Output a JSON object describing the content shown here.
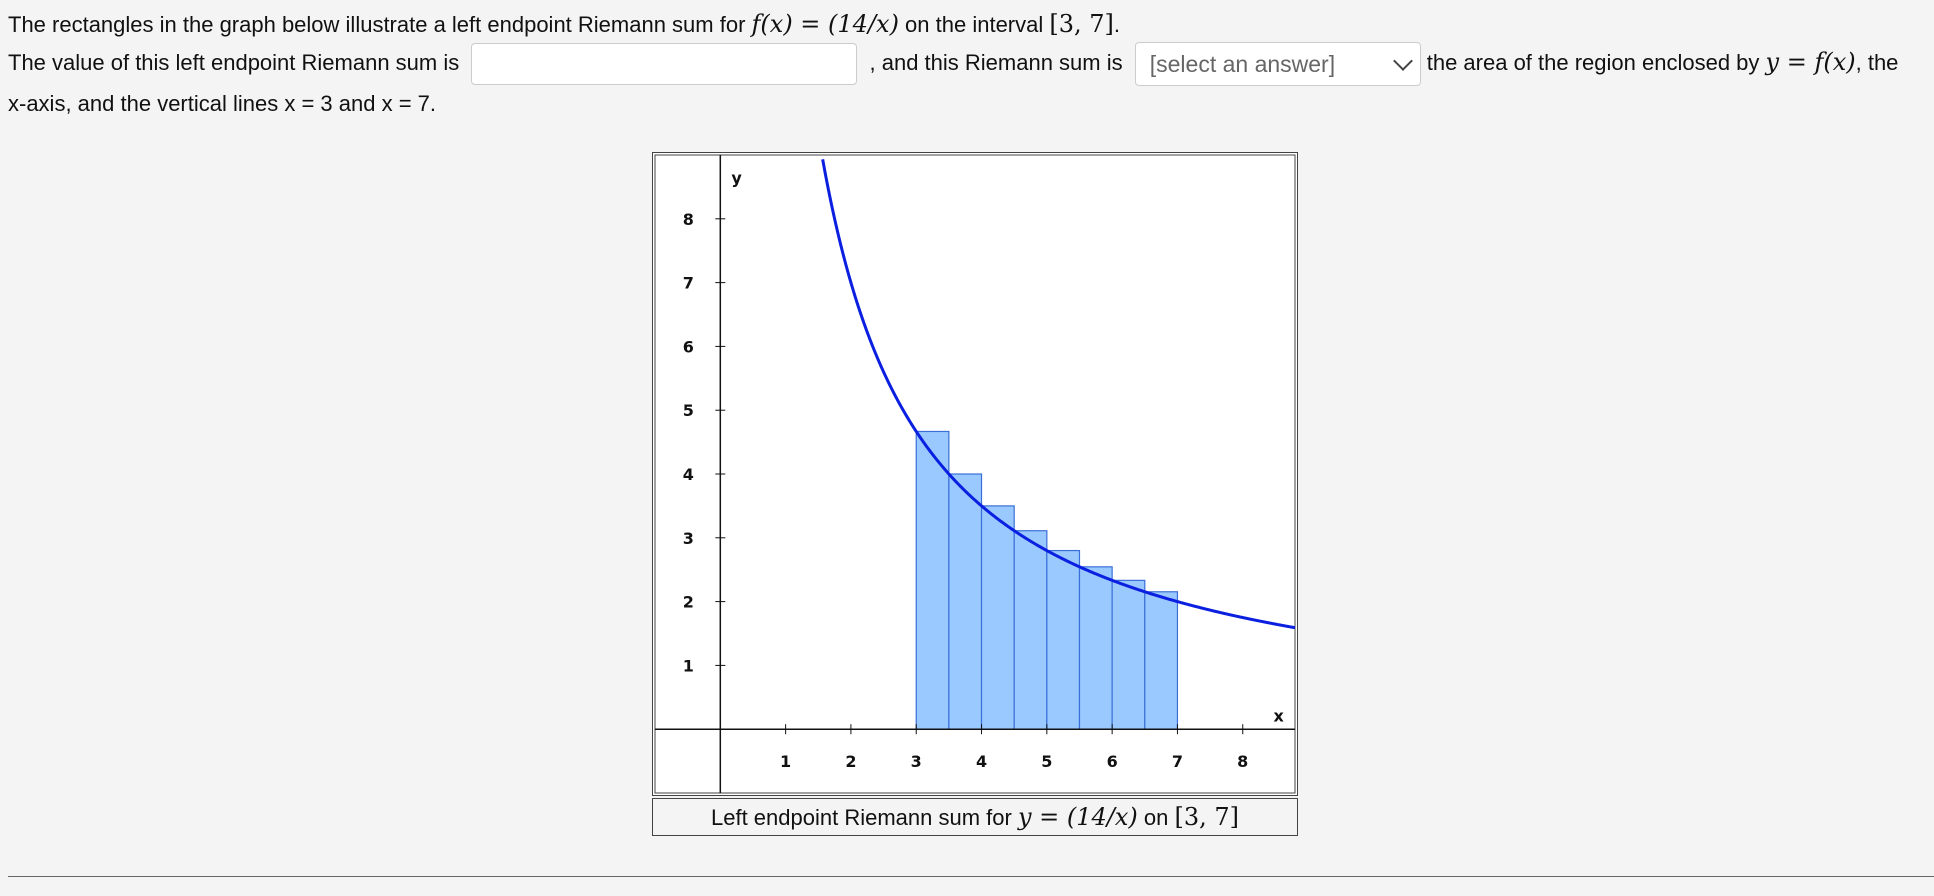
{
  "question": {
    "line1_prefix": "The rectangles in the graph below illustrate a left endpoint Riemann sum for ",
    "line1_function": "f(x) = (14/x)",
    "line1_mid": " on the interval ",
    "line1_interval": "[3, 7]",
    "line1_suffix": ".",
    "line2_prefix": "The value of this left endpoint Riemann sum is",
    "line2_mid": ", and this Riemann sum is",
    "line2_after_select": "the area of the region enclosed by ",
    "line2_equation": "y = f(x)",
    "line2_suffix": ", the",
    "line3": "x-axis, and the vertical lines x = 3 and x = 7."
  },
  "answer_input": {
    "value": "",
    "placeholder": ""
  },
  "answer_select": {
    "selected": "[select an answer]"
  },
  "colors": {
    "curve": "#0a1fe0",
    "rect_fill": "#99c9ff",
    "rect_stroke": "#3b6fd8"
  },
  "chart_data": {
    "type": "area",
    "function": "14/x",
    "interval": [
      3,
      7
    ],
    "method": "left endpoint",
    "n": 8,
    "dx": 0.5,
    "rectangles": [
      {
        "x_left": 3.0,
        "x_right": 3.5,
        "height": 4.667
      },
      {
        "x_left": 3.5,
        "x_right": 4.0,
        "height": 4.0
      },
      {
        "x_left": 4.0,
        "x_right": 4.5,
        "height": 3.5
      },
      {
        "x_left": 4.5,
        "x_right": 5.0,
        "height": 3.111
      },
      {
        "x_left": 5.0,
        "x_right": 5.5,
        "height": 2.8
      },
      {
        "x_left": 5.5,
        "x_right": 6.0,
        "height": 2.545
      },
      {
        "x_left": 6.0,
        "x_right": 6.5,
        "height": 2.333
      },
      {
        "x_left": 6.5,
        "x_right": 7.0,
        "height": 2.154
      }
    ],
    "xlim": [
      -1,
      8.8
    ],
    "ylim": [
      -1,
      9
    ],
    "x_ticks": [
      "1",
      "2",
      "3",
      "4",
      "5",
      "6",
      "7",
      "8"
    ],
    "y_ticks": [
      "1",
      "2",
      "3",
      "4",
      "5",
      "6",
      "7",
      "8"
    ],
    "xlabel": "x",
    "ylabel": "y",
    "caption_prefix": "Left endpoint Riemann sum for ",
    "caption_equation": "y = (14/x)",
    "caption_mid": " on ",
    "caption_interval": "[3, 7]"
  }
}
